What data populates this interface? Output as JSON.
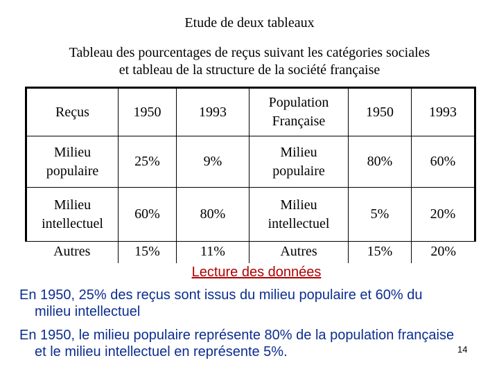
{
  "title": "Etude de deux tableaux",
  "subtitle_line1": "Tableau des pourcentages de reçus suivant les catégories sociales",
  "subtitle_line2": "et tableau de la structure de la société française",
  "table": {
    "header": {
      "c1": "Reçus",
      "c2": "1950",
      "c3": "1993",
      "c4_line1": "Population",
      "c4_line2": "Française",
      "c5": "1950",
      "c6": "1993"
    },
    "rows": [
      {
        "c1_line1": "Milieu",
        "c1_line2": "populaire",
        "c2": "25%",
        "c3": "9%",
        "c4_line1": "Milieu",
        "c4_line2": "populaire",
        "c5": "80%",
        "c6": "60%"
      },
      {
        "c1_line1": "Milieu",
        "c1_line2": "intellectuel",
        "c2": "60%",
        "c3": "80%",
        "c4_line1": "Milieu",
        "c4_line2": "intellectuel",
        "c5": "5%",
        "c6": "20%"
      },
      {
        "c1": "Autres",
        "c2": "15%",
        "c3": "11%",
        "c4": "Autres",
        "c5": "15%",
        "c6": "20%"
      }
    ]
  },
  "reading_title": "Lecture des données",
  "para1_line1": "En 1950, 25% des reçus sont issus du milieu populaire et 60% du",
  "para1_line2": "milieu intellectuel",
  "para2_line1": "En 1950, le milieu populaire représente 80% de la population française",
  "para2_line2": "et le milieu intellectuel en représente 5%.",
  "page_number": "14",
  "colors": {
    "reading_title": "#b00000",
    "paragraph": "#0b2d8f"
  }
}
